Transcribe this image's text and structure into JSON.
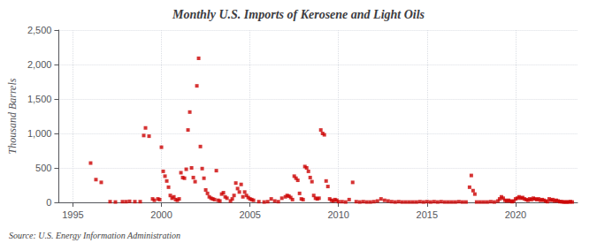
{
  "chart_data": {
    "type": "scatter",
    "title": "Monthly U.S. Imports of Kerosene and Light Oils",
    "ylabel": "Thousand Barrels",
    "annotations": [
      "Source: U.S. Energy Information Administration"
    ],
    "color": "#cc0000",
    "marker": "square",
    "grid": true,
    "xlim": [
      1994.2,
      2023.5
    ],
    "xticks": [
      1995,
      2000,
      2005,
      2010,
      2015,
      2020
    ],
    "ylim": [
      0,
      2500
    ],
    "yticks": [
      0,
      500,
      {
        "value": 1000,
        "label": "1,000"
      },
      {
        "value": 1500,
        "label": "1,500"
      },
      {
        "value": 2000,
        "label": "2,000"
      },
      {
        "value": 2500,
        "label": "2,500"
      }
    ],
    "x": [
      1996.0,
      1996.3,
      1996.6,
      1997.1,
      1997.4,
      1997.8,
      1998.0,
      1998.2,
      1998.5,
      1998.8,
      1999.0,
      1999.1,
      1999.3,
      1999.5,
      1999.6,
      1999.8,
      1999.9,
      2000.0,
      2000.1,
      2000.2,
      2000.3,
      2000.4,
      2000.5,
      2000.6,
      2000.7,
      2000.8,
      2000.9,
      2001.0,
      2001.1,
      2001.2,
      2001.3,
      2001.4,
      2001.5,
      2001.6,
      2001.7,
      2001.8,
      2001.9,
      2002.0,
      2002.1,
      2002.2,
      2002.3,
      2002.4,
      2002.5,
      2002.6,
      2002.7,
      2002.8,
      2002.9,
      2003.0,
      2003.1,
      2003.2,
      2003.3,
      2003.4,
      2003.5,
      2003.6,
      2003.7,
      2003.9,
      2004.0,
      2004.1,
      2004.2,
      2004.3,
      2004.4,
      2004.5,
      2004.6,
      2004.7,
      2004.8,
      2004.9,
      2005.0,
      2005.1,
      2005.2,
      2005.5,
      2005.8,
      2006.0,
      2006.2,
      2006.4,
      2006.6,
      2006.8,
      2007.0,
      2007.1,
      2007.2,
      2007.3,
      2007.4,
      2007.5,
      2007.6,
      2007.7,
      2007.8,
      2007.9,
      2008.0,
      2008.1,
      2008.2,
      2008.3,
      2008.4,
      2008.5,
      2008.6,
      2008.7,
      2008.8,
      2008.9,
      2009.0,
      2009.1,
      2009.2,
      2009.3,
      2009.4,
      2009.5,
      2009.6,
      2009.7,
      2009.8,
      2009.9,
      2010.0,
      2010.2,
      2010.4,
      2010.6,
      2010.8,
      2011.0,
      2011.2,
      2011.4,
      2011.6,
      2011.8,
      2012.0,
      2012.2,
      2012.4,
      2012.6,
      2012.8,
      2013.0,
      2013.2,
      2013.4,
      2013.6,
      2013.8,
      2014.0,
      2014.2,
      2014.4,
      2014.6,
      2014.8,
      2015.0,
      2015.2,
      2015.4,
      2015.6,
      2015.8,
      2016.0,
      2016.2,
      2016.4,
      2016.6,
      2016.8,
      2017.0,
      2017.2,
      2017.4,
      2017.5,
      2017.6,
      2017.7,
      2017.8,
      2018.0,
      2018.2,
      2018.4,
      2018.6,
      2018.8,
      2019.0,
      2019.1,
      2019.2,
      2019.3,
      2019.4,
      2019.5,
      2019.6,
      2019.7,
      2019.8,
      2019.9,
      2020.0,
      2020.1,
      2020.2,
      2020.3,
      2020.4,
      2020.5,
      2020.6,
      2020.7,
      2020.8,
      2020.9,
      2021.0,
      2021.1,
      2021.2,
      2021.3,
      2021.4,
      2021.5,
      2021.6,
      2021.7,
      2021.8,
      2021.9,
      2022.0,
      2022.1,
      2022.2,
      2022.3,
      2022.4,
      2022.5,
      2022.6,
      2022.7,
      2022.8,
      2022.9,
      2023.0,
      2023.1,
      2023.2
    ],
    "values": [
      570,
      330,
      290,
      10,
      5,
      10,
      10,
      15,
      10,
      10,
      970,
      1080,
      960,
      50,
      30,
      50,
      40,
      800,
      450,
      380,
      310,
      220,
      100,
      60,
      80,
      40,
      30,
      50,
      430,
      360,
      350,
      480,
      1050,
      1310,
      500,
      360,
      300,
      1690,
      2090,
      810,
      490,
      350,
      180,
      130,
      80,
      60,
      50,
      40,
      460,
      30,
      20,
      120,
      140,
      80,
      60,
      20,
      50,
      100,
      280,
      200,
      150,
      260,
      80,
      150,
      100,
      70,
      50,
      40,
      30,
      10,
      5,
      10,
      50,
      20,
      10,
      60,
      80,
      100,
      90,
      70,
      40,
      380,
      350,
      320,
      130,
      50,
      40,
      520,
      500,
      450,
      360,
      300,
      100,
      60,
      50,
      60,
      1050,
      1000,
      980,
      310,
      230,
      50,
      30,
      20,
      40,
      30,
      10,
      10,
      5,
      40,
      290,
      10,
      5,
      10,
      5,
      5,
      10,
      20,
      50,
      30,
      20,
      10,
      5,
      10,
      5,
      5,
      5,
      5,
      5,
      10,
      5,
      10,
      5,
      10,
      5,
      10,
      5,
      5,
      5,
      5,
      10,
      5,
      5,
      220,
      390,
      170,
      120,
      5,
      5,
      5,
      5,
      10,
      5,
      20,
      50,
      80,
      60,
      30,
      20,
      30,
      20,
      10,
      20,
      50,
      60,
      80,
      60,
      70,
      50,
      40,
      30,
      50,
      40,
      60,
      50,
      40,
      50,
      30,
      40,
      30,
      20,
      10,
      50,
      30,
      40,
      20,
      30,
      20,
      10,
      10,
      5,
      5,
      5,
      5,
      10,
      5
    ]
  }
}
